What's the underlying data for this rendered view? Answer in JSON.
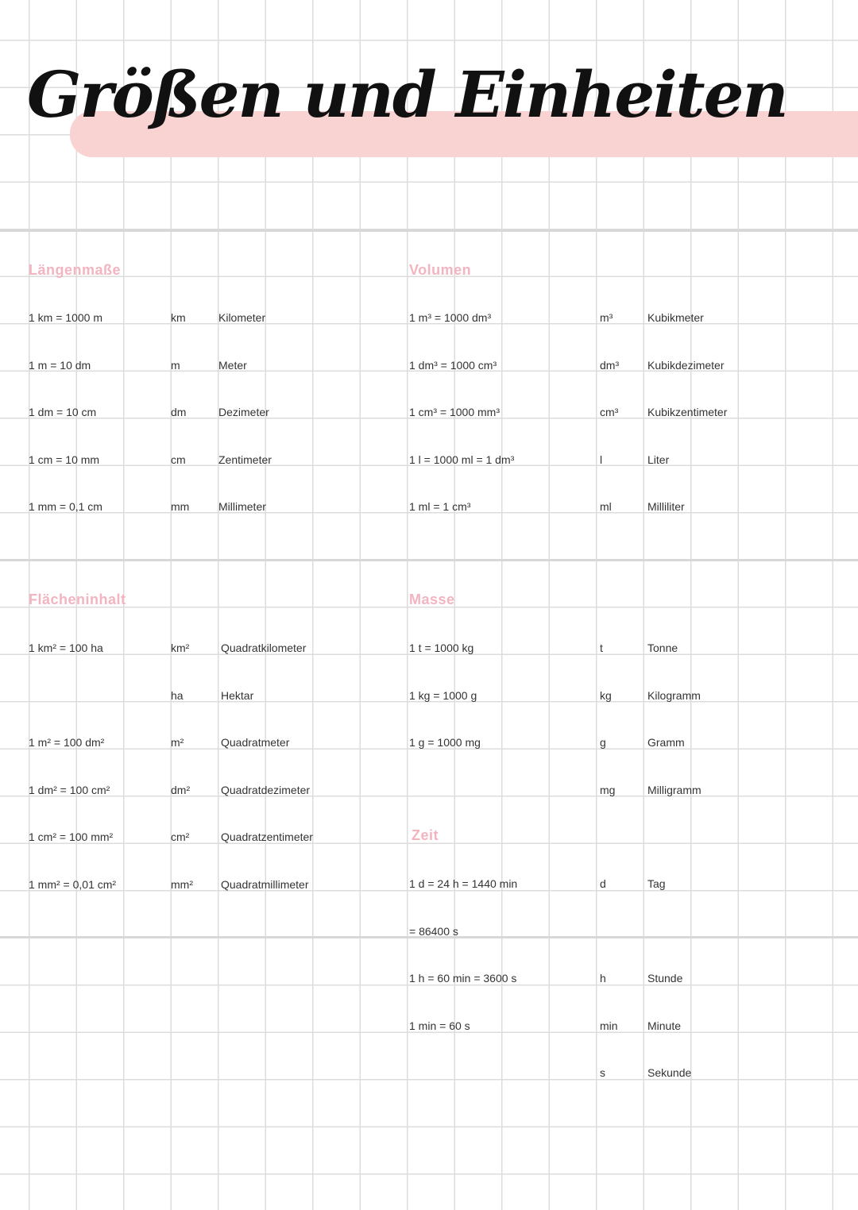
{
  "title": "Größen und Einheiten",
  "accent_color": "#f9d2d2",
  "heading_color": "#f3b4c0",
  "sections": {
    "laengen": {
      "heading": "Längenmaße",
      "rows": [
        {
          "eq": "1 km = 1000 m",
          "unit": "km",
          "name": "Kilometer"
        },
        {
          "eq": "1 m = 10 dm",
          "unit": "m",
          "name": "Meter"
        },
        {
          "eq": "1 dm = 10 cm",
          "unit": "dm",
          "name": "Dezimeter"
        },
        {
          "eq": "1 cm = 10 mm",
          "unit": "cm",
          "name": "Zentimeter"
        },
        {
          "eq": "1 mm = 0,1 cm",
          "unit": "mm",
          "name": "Millimeter"
        }
      ]
    },
    "volumen": {
      "heading": "Volumen",
      "rows": [
        {
          "eq": "1 m³ = 1000 dm³",
          "unit": "m³",
          "name": "Kubikmeter"
        },
        {
          "eq": "1 dm³ = 1000 cm³",
          "unit": "dm³",
          "name": "Kubikdezimeter"
        },
        {
          "eq": "1 cm³ = 1000 mm³",
          "unit": "cm³",
          "name": "Kubikzentimeter"
        },
        {
          "eq": "1 l = 1000 ml = 1 dm³",
          "unit": "l",
          "name": "Liter"
        },
        {
          "eq": "1 ml = 1 cm³",
          "unit": "ml",
          "name": "Milliliter"
        }
      ]
    },
    "flaechen": {
      "heading": "Flächeninhalt",
      "rows": [
        {
          "eq": "1 km² = 100 ha",
          "unit": "km²",
          "name": "Quadratkilometer"
        },
        {
          "eq": "",
          "unit": "ha",
          "name": "Hektar"
        },
        {
          "eq": "1 m² = 100 dm²",
          "unit": "m²",
          "name": "Quadratmeter"
        },
        {
          "eq": "1 dm² = 100 cm²",
          "unit": "dm²",
          "name": "Quadratdezimeter"
        },
        {
          "eq": "1 cm² = 100 mm²",
          "unit": "cm²",
          "name": "Quadratzentimeter"
        },
        {
          "eq": "1 mm² = 0,01 cm²",
          "unit": "mm²",
          "name": "Quadratmillimeter"
        }
      ]
    },
    "masse": {
      "heading": "Masse",
      "rows": [
        {
          "eq": "1 t = 1000 kg",
          "unit": "t",
          "name": "Tonne"
        },
        {
          "eq": "1 kg = 1000 g",
          "unit": "kg",
          "name": "Kilogramm"
        },
        {
          "eq": "1 g = 1000 mg",
          "unit": "g",
          "name": "Gramm"
        },
        {
          "eq": "",
          "unit": "mg",
          "name": "Milligramm"
        }
      ]
    },
    "zeit": {
      "heading": "Zeit",
      "rows": [
        {
          "eq": "1 d = 24 h = 1440 min",
          "unit": "d",
          "name": "Tag"
        },
        {
          "eq": "= 86400 s",
          "unit": "",
          "name": ""
        },
        {
          "eq": "1 h = 60 min = 3600 s",
          "unit": "h",
          "name": "Stunde"
        },
        {
          "eq": "1 min = 60 s",
          "unit": "min",
          "name": "Minute"
        },
        {
          "eq": "",
          "unit": "s",
          "name": "Sekunde"
        }
      ]
    }
  }
}
